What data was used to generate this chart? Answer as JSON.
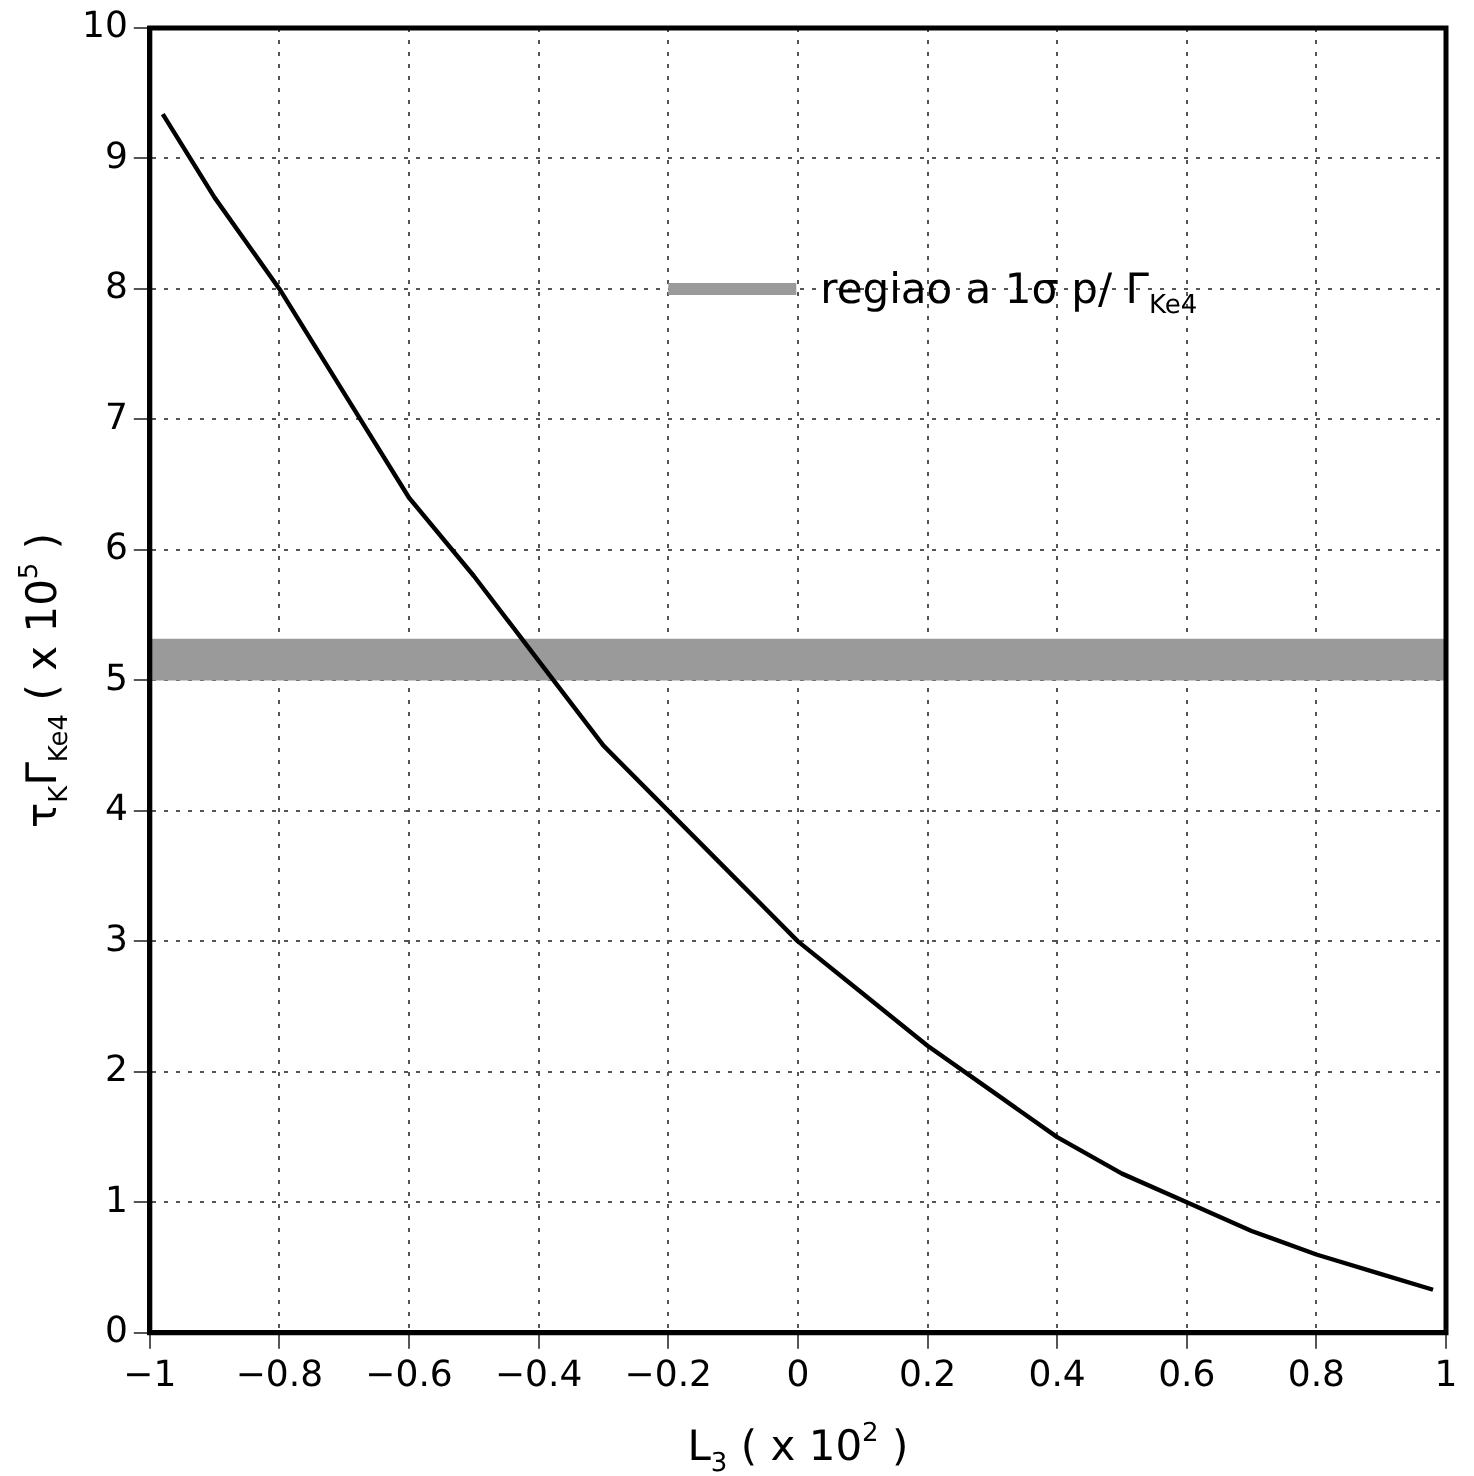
{
  "chart_data": {
    "type": "line",
    "xlabel": "L$_{3}$ ( x 10$^{2}$ )",
    "ylabel": "τ$_{K}$Γ$_{Ke4}$ ( x 10$^{5}$ )",
    "x": [
      -0.98,
      -0.9,
      -0.8,
      -0.7,
      -0.6,
      -0.5,
      -0.4,
      -0.3,
      -0.2,
      -0.1,
      0,
      0.1,
      0.2,
      0.3,
      0.4,
      0.5,
      0.6,
      0.7,
      0.8,
      0.9,
      0.98
    ],
    "series": [
      {
        "color": "#000000",
        "values": [
          9.34,
          8.7,
          8.0,
          7.2,
          6.4,
          5.8,
          5.15,
          4.5,
          4.0,
          3.5,
          3.0,
          2.6,
          2.2,
          1.85,
          1.5,
          1.22,
          1.0,
          0.78,
          0.6,
          0.45,
          0.33
        ]
      }
    ],
    "xlim": [
      -1,
      1
    ],
    "xticks": [
      -1,
      -0.8,
      -0.6,
      -0.4,
      -0.2,
      0,
      0.2,
      0.4,
      0.6,
      0.8,
      1
    ],
    "ylim": [
      0,
      10
    ],
    "yticks": [
      0,
      1,
      2,
      3,
      4,
      5,
      6,
      7,
      8,
      9,
      10
    ],
    "grid": true,
    "marker": "none",
    "line_style": "solid",
    "bands": [
      {
        "axis": "y",
        "from": 5.0,
        "to": 5.32,
        "label": "regiao a 1σ p/ Γ$_{Ke4}$",
        "color": "#9a9a9a"
      }
    ]
  }
}
